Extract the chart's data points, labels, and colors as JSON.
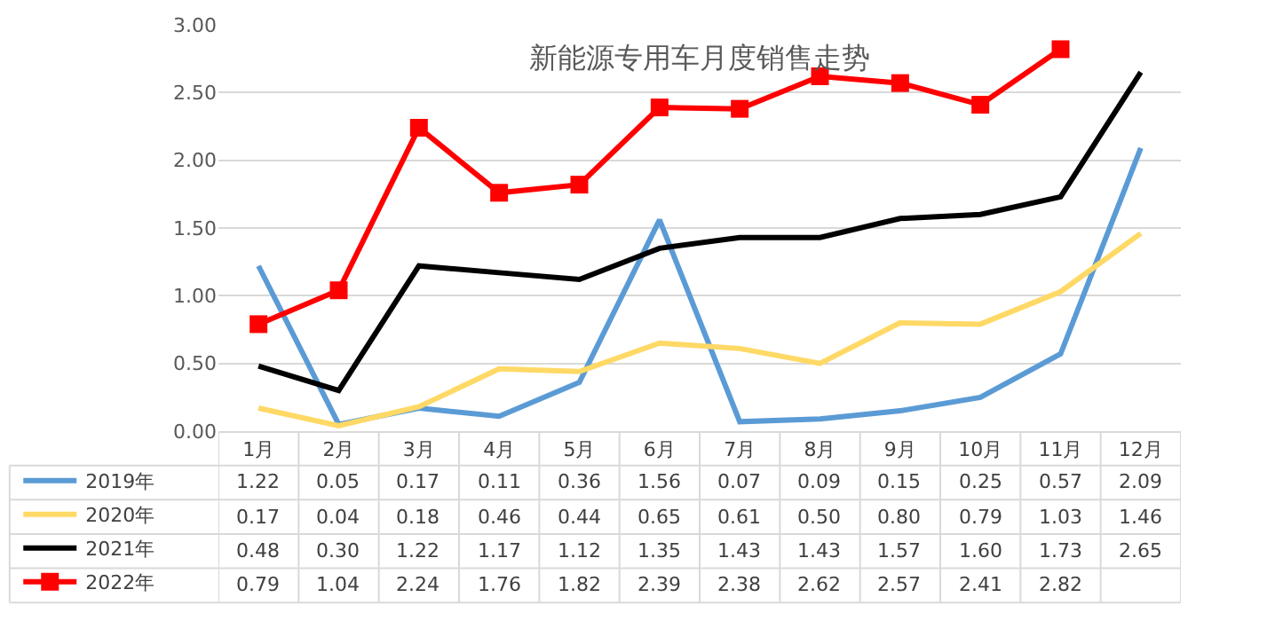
{
  "chart_data": {
    "type": "line",
    "title": "新能源专用车月度销售走势",
    "categories": [
      "1月",
      "2月",
      "3月",
      "4月",
      "5月",
      "6月",
      "7月",
      "8月",
      "9月",
      "10月",
      "11月",
      "12月"
    ],
    "series": [
      {
        "name": "2019年",
        "color": "#5b9bd5",
        "marker": "none",
        "values": [
          1.22,
          0.05,
          0.17,
          0.11,
          0.36,
          1.56,
          0.07,
          0.09,
          0.15,
          0.25,
          0.57,
          2.09
        ],
        "value_labels": [
          "1.22",
          "0.05",
          "0.17",
          "0.11",
          "0.36",
          "1.56",
          "0.07",
          "0.09",
          "0.15",
          "0.25",
          "0.57",
          "2.09"
        ]
      },
      {
        "name": "2020年",
        "color": "#ffd966",
        "marker": "none",
        "values": [
          0.17,
          0.04,
          0.18,
          0.46,
          0.44,
          0.65,
          0.61,
          0.5,
          0.8,
          0.79,
          1.03,
          1.46
        ],
        "value_labels": [
          "0.17",
          "0.04",
          "0.18",
          "0.46",
          "0.44",
          "0.65",
          "0.61",
          "0.50",
          "0.80",
          "0.79",
          "1.03",
          "1.46"
        ]
      },
      {
        "name": "2021年",
        "color": "#000000",
        "marker": "none",
        "values": [
          0.48,
          0.3,
          1.22,
          1.17,
          1.12,
          1.35,
          1.43,
          1.43,
          1.57,
          1.6,
          1.73,
          2.65
        ],
        "value_labels": [
          "0.48",
          "0.30",
          "1.22",
          "1.17",
          "1.12",
          "1.35",
          "1.43",
          "1.43",
          "1.57",
          "1.60",
          "1.73",
          "2.65"
        ]
      },
      {
        "name": "2022年",
        "color": "#ff0000",
        "marker": "square",
        "values": [
          0.79,
          1.04,
          2.24,
          1.76,
          1.82,
          2.39,
          2.38,
          2.62,
          2.57,
          2.41,
          2.82,
          null
        ],
        "value_labels": [
          "0.79",
          "1.04",
          "2.24",
          "1.76",
          "1.82",
          "2.39",
          "2.38",
          "2.62",
          "2.57",
          "2.41",
          "2.82",
          null
        ]
      }
    ],
    "ylim": [
      0,
      3
    ],
    "yticks": [
      {
        "value": 0,
        "label": "0.00"
      },
      {
        "value": 0.5,
        "label": "0.50"
      },
      {
        "value": 1,
        "label": "1.00"
      },
      {
        "value": 1.5,
        "label": "1.50"
      },
      {
        "value": 2,
        "label": "2.00"
      },
      {
        "value": 2.5,
        "label": "2.50"
      },
      {
        "value": 3,
        "label": "3.00"
      }
    ],
    "grid": "y",
    "legend": "bottom left"
  }
}
